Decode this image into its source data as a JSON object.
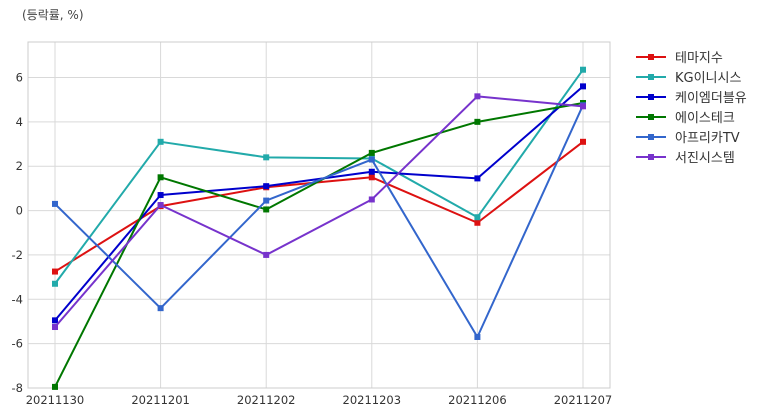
{
  "chart_data": {
    "type": "line",
    "unit_label": "(등락률, %)",
    "categories": [
      "20211130",
      "20211201",
      "20211202",
      "20211203",
      "20211206",
      "20211207"
    ],
    "ylim": [
      -8,
      7.6
    ],
    "yticks": [
      -8,
      -6,
      -4,
      -2,
      0,
      2,
      4,
      6
    ],
    "grid": true,
    "legend_position": "right",
    "series": [
      {
        "name": "테마지수",
        "color": "#dd1111",
        "values": [
          -2.75,
          0.2,
          1.05,
          1.5,
          -0.55,
          3.1
        ]
      },
      {
        "name": "KG이니시스",
        "color": "#22aaaa",
        "values": [
          -3.3,
          3.1,
          2.4,
          2.35,
          -0.3,
          6.35
        ]
      },
      {
        "name": "케이엠더블유",
        "color": "#0000cc",
        "values": [
          -4.95,
          0.7,
          1.1,
          1.75,
          1.45,
          5.6
        ]
      },
      {
        "name": "에이스테크",
        "color": "#007700",
        "values": [
          -7.95,
          1.5,
          0.05,
          2.6,
          4.0,
          4.85
        ]
      },
      {
        "name": "아프리카TV",
        "color": "#3366cc",
        "values": [
          0.3,
          -4.4,
          0.45,
          2.3,
          -5.7,
          4.75
        ]
      },
      {
        "name": "서진시스템",
        "color": "#7733cc",
        "values": [
          -5.25,
          0.25,
          -2.0,
          0.5,
          5.15,
          4.7
        ]
      }
    ]
  }
}
